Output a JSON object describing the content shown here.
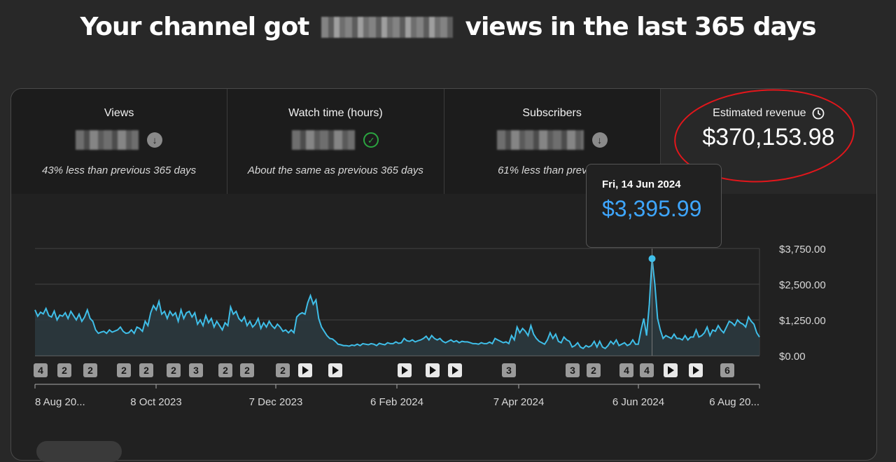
{
  "headline": {
    "prefix": "Your channel got",
    "suffix": "views in the last 365 days"
  },
  "metrics": [
    {
      "label": "Views",
      "note": "43% less than previous 365 days",
      "status_icon": "arrow-down-icon"
    },
    {
      "label": "Watch time (hours)",
      "note": "About the same as previous 365 days",
      "status_icon": "check-circle-icon"
    },
    {
      "label": "Subscribers",
      "note": "61% less than previous",
      "status_icon": "arrow-down-icon"
    }
  ],
  "revenue": {
    "label": "Estimated revenue",
    "value": "$370,153.98",
    "icon": "clock-icon"
  },
  "tooltip": {
    "date": "Fri, 14 Jun 2024",
    "value": "$3,395.99"
  },
  "colors": {
    "line": "#3fbee8",
    "tooltip_value": "#3ea6ff",
    "annotation": "#e3161b",
    "check": "#2ba640"
  },
  "chart_data": {
    "type": "line",
    "series": [
      {
        "values": [
          1600,
          1380,
          1520,
          1460,
          1650,
          1400,
          1350,
          1560,
          1250,
          1420,
          1380,
          1500,
          1300,
          1550,
          1400,
          1250,
          1450,
          1200,
          1350,
          1600,
          1300,
          1200,
          900,
          780,
          820,
          850,
          780,
          900,
          820,
          860,
          900,
          1000,
          850,
          780,
          800,
          900,
          780,
          1000,
          950,
          850,
          1200,
          1050,
          1500,
          1750,
          1600,
          1900,
          1450,
          1550,
          1300,
          1550,
          1400,
          1500,
          1200,
          1600,
          1300,
          1500,
          1550,
          1350,
          1500,
          1100,
          1250,
          1050,
          1400,
          1150,
          1300,
          1000,
          1200,
          1050,
          900,
          1150,
          1050,
          1700,
          1450,
          1550,
          1300,
          1200,
          1350,
          1050,
          1200,
          1000,
          1100,
          1300,
          950,
          1150,
          1000,
          1200,
          1050,
          950,
          1100,
          1000,
          850,
          900,
          800,
          900,
          800,
          1350,
          1450,
          1500,
          1450,
          1850,
          2100,
          1800,
          1950,
          1300,
          1000,
          850,
          700,
          600,
          580,
          500,
          400,
          380,
          350,
          350,
          330,
          370,
          350,
          400,
          350,
          420,
          400,
          380,
          420,
          400,
          350,
          430,
          400,
          380,
          450,
          420,
          420,
          480,
          430,
          450,
          600,
          520,
          500,
          550,
          480,
          520,
          550,
          600,
          680,
          550,
          700,
          600,
          550,
          600,
          500,
          450,
          500,
          550,
          480,
          520,
          450,
          500,
          480,
          480,
          450,
          420,
          420,
          400,
          450,
          420,
          420,
          470,
          420,
          600,
          550,
          500,
          450,
          480,
          420,
          700,
          550,
          1000,
          800,
          950,
          850,
          700,
          1050,
          750,
          600,
          500,
          450,
          400,
          550,
          800,
          600,
          750,
          500,
          450,
          650,
          550,
          500,
          300,
          350,
          450,
          300,
          250,
          350,
          300,
          350,
          500,
          300,
          500,
          300,
          250,
          350,
          500,
          400,
          550,
          350,
          400,
          450,
          350,
          400,
          550,
          400,
          400,
          900,
          1300,
          700,
          1800,
          3395,
          2500,
          1300,
          900,
          600,
          700,
          650,
          600,
          750,
          600,
          600,
          550,
          700,
          550,
          650,
          650,
          900,
          650,
          700,
          800,
          1000,
          700,
          900,
          850,
          1050,
          900,
          800,
          1000,
          1200,
          1150,
          1050,
          1250,
          1150,
          1100,
          1000,
          1350,
          1200,
          1100,
          800,
          650
        ]
      }
    ],
    "x_tick_labels": [
      "8 Aug 20...",
      "8 Oct 2023",
      "7 Dec 2023",
      "6 Feb 2024",
      "7 Apr 2024",
      "6 Jun 2024",
      "6 Aug 20..."
    ],
    "y_tick_labels": [
      "$3,750.00",
      "$2,500.00",
      "$1,250.00",
      "$0.00"
    ],
    "ylim": [
      0,
      3750
    ],
    "highlight": {
      "date": "Fri, 14 Jun 2024",
      "value": 3395.99
    },
    "event_markers": [
      "4",
      "2",
      "2",
      "2",
      "2",
      "2",
      "3",
      "2",
      "2",
      "2",
      "play",
      "play",
      "play",
      "play",
      "play",
      "3",
      "3",
      "2",
      "4",
      "4",
      "play",
      "play",
      "6"
    ],
    "grid": true
  }
}
